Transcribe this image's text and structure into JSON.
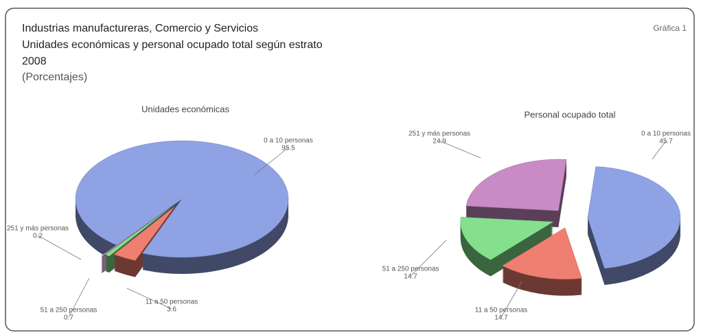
{
  "header": {
    "title": [
      "Industrias manufactureras, Comercio y Servicios",
      "Unidades económicas  y personal ocupado total según estrato",
      "2008"
    ],
    "subtitle": "(Porcentajes)",
    "label": "Gráfica 1"
  },
  "chart_data": [
    {
      "type": "pie",
      "title": "Unidades económicas",
      "categories": [
        "0 a 10 personas",
        "11 a 50 personas",
        "51 a 250 personas",
        "251 y más personas"
      ],
      "values": [
        95.5,
        3.6,
        0.7,
        0.2
      ],
      "colors": [
        "#8fa2e4",
        "#ef7f70",
        "#84e08c",
        "#c88bc6"
      ]
    },
    {
      "type": "pie",
      "title": "Personal ocupado total",
      "categories": [
        "0 a 10 personas",
        "11 a 50 personas",
        "51 a 250 personas",
        "251 y más personas"
      ],
      "values": [
        45.7,
        14.7,
        14.7,
        24.9
      ],
      "colors": [
        "#8fa2e4",
        "#ef7f70",
        "#84e08c",
        "#c88bc6"
      ]
    }
  ]
}
